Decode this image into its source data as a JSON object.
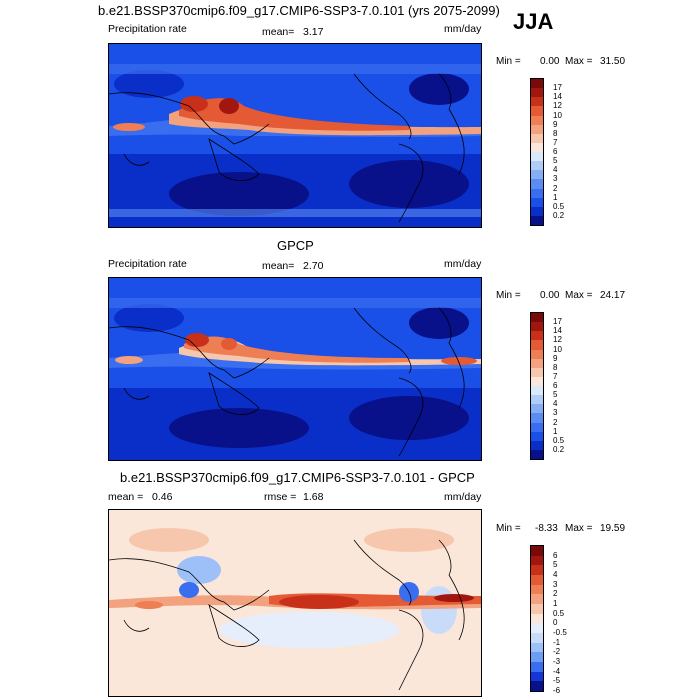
{
  "season": "JJA",
  "colors": {
    "abs": [
      "#08108a",
      "#0a2ec8",
      "#1a4fe8",
      "#3a6ef0",
      "#5a8cf3",
      "#86aef5",
      "#b0cdf8",
      "#dbe8fb",
      "#fbe7da",
      "#f7c7ad",
      "#f3a27f",
      "#ee7f55",
      "#e35a35",
      "#c9301a",
      "#a21610",
      "#7a0a0a"
    ],
    "diff": [
      "#08108a",
      "#1436d8",
      "#3a6ef0",
      "#6c9ef5",
      "#9cc0f7",
      "#c8dcfa",
      "#e6eefc",
      "#fbe7da",
      "#f7c7ad",
      "#f3a27f",
      "#ee7f55",
      "#e35a35",
      "#c9301a",
      "#a21610",
      "#7a0a0a"
    ]
  },
  "panels": [
    {
      "title": "b.e21.BSSP370cmip6.f09_g17.CMIP6-SSP3-7.0.101 (yrs 2075-2099)",
      "left_label": "Precipitation rate",
      "mean_label": "mean=",
      "mean_value": "3.17",
      "units": "mm/day",
      "min_label": "Min =",
      "min_value": "0.00",
      "max_label": "Max =",
      "max_value": "31.50",
      "levels": [
        "17",
        "14",
        "12",
        "10",
        "9",
        "8",
        "7",
        "6",
        "5",
        "4",
        "3",
        "2",
        "1",
        "0.5",
        "0.2"
      ]
    },
    {
      "title": "GPCP",
      "left_label": "Precipitation rate",
      "mean_label": "mean=",
      "mean_value": "2.70",
      "units": "mm/day",
      "min_label": "Min =",
      "min_value": "0.00",
      "max_label": "Max =",
      "max_value": "24.17",
      "levels": [
        "17",
        "14",
        "12",
        "10",
        "9",
        "8",
        "7",
        "6",
        "5",
        "4",
        "3",
        "2",
        "1",
        "0.5",
        "0.2"
      ]
    },
    {
      "title": "b.e21.BSSP370cmip6.f09_g17.CMIP6-SSP3-7.0.101 - GPCP",
      "left_label": "mean =",
      "mean_value": "0.46",
      "rmse_label": "rmse =",
      "rmse_value": "1.68",
      "units": "mm/day",
      "min_label": "Min =",
      "min_value": "-8.33",
      "max_label": "Max =",
      "max_value": "19.59",
      "levels": [
        "6",
        "5",
        "4",
        "3",
        "2",
        "1",
        "0.5",
        "0",
        "-0.5",
        "-1",
        "-2",
        "-3",
        "-4",
        "-5",
        "-6"
      ]
    }
  ]
}
